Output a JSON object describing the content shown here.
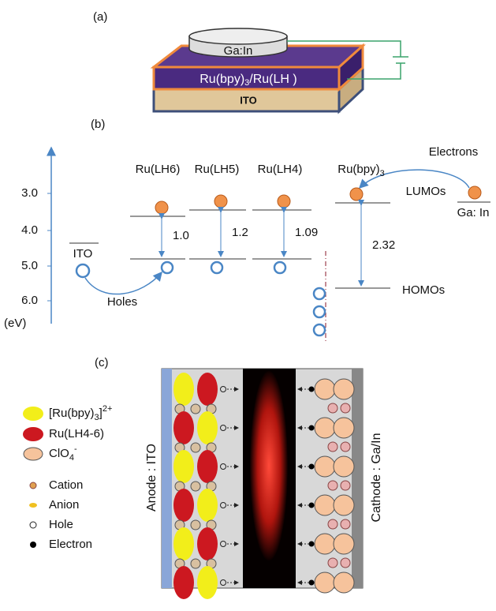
{
  "panel_a": {
    "label": "(a)",
    "top_contact": "Ga:In",
    "emitter": {
      "text": "Ru(bpy)",
      "sub": "3",
      "rest": "/Ru(LH )"
    },
    "substrate": "ITO"
  },
  "panel_b": {
    "label": "(b)",
    "axis_ticks": [
      "3.0",
      "4.0",
      "5.0",
      "6.0"
    ],
    "axis_unit": "(eV)",
    "complexes": [
      {
        "text": "Ru(LH6)"
      },
      {
        "text": "Ru(LH5)"
      },
      {
        "text": "Ru(LH4)"
      },
      {
        "text": "Ru(bpy)",
        "sub": "3"
      }
    ],
    "gaps": [
      "1.0",
      "1.2",
      "1.09",
      "2.32"
    ],
    "electrons": "Electrons",
    "lumos": "LUMOs",
    "cathode": "Ga: In",
    "anode": "ITO",
    "holes": "Holes",
    "homos": "HOMOs"
  },
  "panel_c": {
    "label": "(c)",
    "legend": [
      {
        "text": "[Ru(bpy)",
        "sub": "3",
        "rest": "]",
        "sup": "2+"
      },
      {
        "text": "Ru(LH4-6)"
      },
      {
        "text": "ClO",
        "sub": "4",
        "sup": "-"
      },
      {
        "text": "Cation"
      },
      {
        "text": "Anion"
      },
      {
        "text": "Hole"
      },
      {
        "text": "Electron"
      }
    ],
    "anode": "Anode : ITO",
    "cathode": "Cathode : Ga/In"
  }
}
